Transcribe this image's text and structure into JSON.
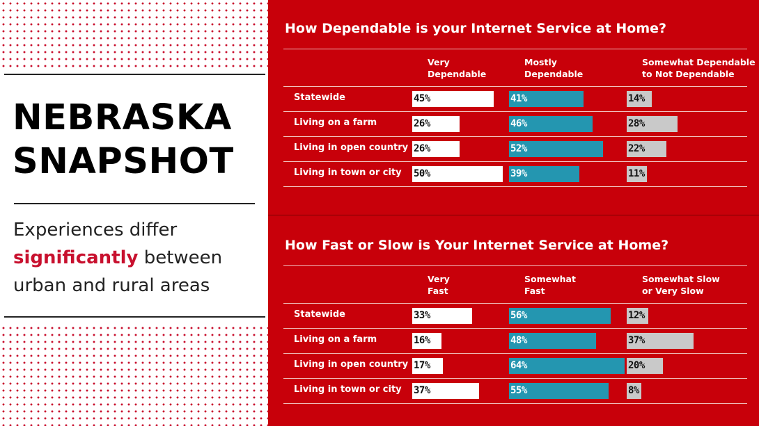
{
  "left_panel": {
    "title_lines": [
      "NEBRASKA",
      "SNAPSHOT"
    ],
    "subtitle": {
      "line1": "Experiences differ",
      "highlight": "significantly",
      "line2_rest": " between",
      "line3": "urban and rural areas"
    },
    "colors": {
      "accent": "#c8102e",
      "background": "#ffffff"
    }
  },
  "colors": {
    "panel_background": "#c8000a",
    "white_bar": "#ffffff",
    "teal_bar": "#2496b0",
    "gray_bar": "#c9c9c9"
  },
  "chart_data": [
    {
      "type": "bar",
      "title": "How Dependable is your Internet Service at Home?",
      "columns": [
        {
          "lines": [
            "Very",
            "Dependable"
          ]
        },
        {
          "lines": [
            "Mostly",
            "Dependable"
          ]
        },
        {
          "lines": [
            "Somewhat Dependable",
            "to Not Dependable"
          ]
        }
      ],
      "categories": [
        "Statewide",
        "Living on a farm",
        "Living in open country",
        "Living in town or city"
      ],
      "series": [
        {
          "name": "Very Dependable",
          "values": [
            45,
            26,
            26,
            50
          ]
        },
        {
          "name": "Mostly Dependable",
          "values": [
            41,
            46,
            52,
            39
          ]
        },
        {
          "name": "Somewhat Dependable to Not Dependable",
          "values": [
            14,
            28,
            22,
            11
          ]
        }
      ],
      "unit": "%"
    },
    {
      "type": "bar",
      "title": "How Fast or Slow is Your Internet Service at Home?",
      "columns": [
        {
          "lines": [
            "Very",
            "Fast"
          ]
        },
        {
          "lines": [
            "Somewhat",
            "Fast"
          ]
        },
        {
          "lines": [
            "Somewhat Slow",
            "or Very Slow"
          ]
        }
      ],
      "categories": [
        "Statewide",
        "Living on a farm",
        "Living in open country",
        "Living in town or city"
      ],
      "series": [
        {
          "name": "Very Fast",
          "values": [
            33,
            16,
            17,
            37
          ]
        },
        {
          "name": "Somewhat Fast",
          "values": [
            56,
            48,
            64,
            55
          ]
        },
        {
          "name": "Somewhat Slow or Very Slow",
          "values": [
            12,
            37,
            20,
            8
          ]
        }
      ],
      "unit": "%"
    }
  ]
}
